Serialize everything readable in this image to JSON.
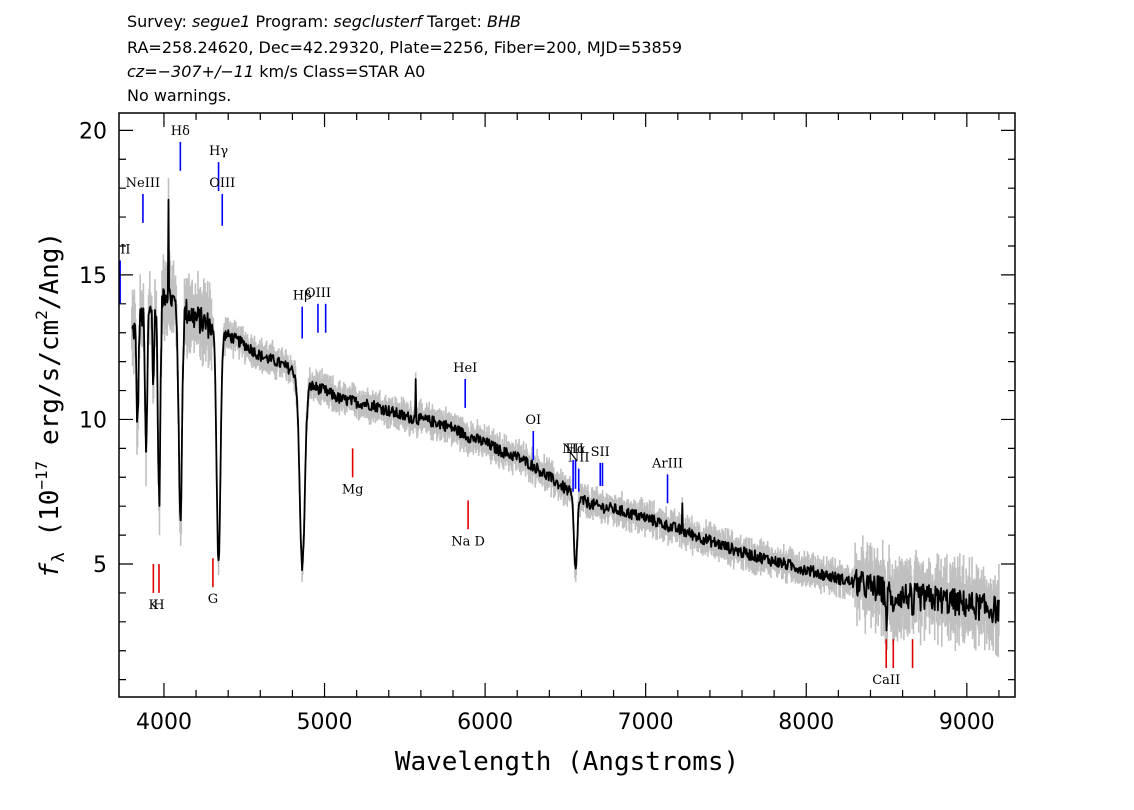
{
  "header": {
    "line1": {
      "survey_label": "Survey: ",
      "survey": "segue1",
      "program_label": " Program: ",
      "program": "segclusterf",
      "target_label": " Target: ",
      "target": "BHB"
    },
    "line2": "RA=258.24620, Dec=42.29320, Plate=2256, Fiber=200, MJD=53859",
    "line3": {
      "cz": "cz=−307+/−11",
      "rest": " km/s Class=STAR A0"
    },
    "line4": "No warnings."
  },
  "chart_data": {
    "type": "line",
    "xlabel": "Wavelength (Angstroms)",
    "ylabel_prefix": "f",
    "ylabel_sub": "λ",
    "ylabel_text": " (10",
    "ylabel_exp": "−17",
    "ylabel_units": " erg/s/cm",
    "ylabel_units_exp": "2",
    "ylabel_end": "/Ang)",
    "xlim": [
      3720,
      9300
    ],
    "ylim": [
      0.4,
      20.6
    ],
    "xticks": [
      4000,
      5000,
      6000,
      7000,
      8000,
      9000
    ],
    "yticks": [
      5,
      10,
      15,
      20
    ],
    "colors": {
      "flux": "#000000",
      "error": "#c0c0c0",
      "emission": "#0000ff",
      "absorption": "#e00000"
    },
    "continuum": [
      [
        3800,
        13.0
      ],
      [
        3900,
        13.9
      ],
      [
        4000,
        14.4
      ],
      [
        4100,
        13.9
      ],
      [
        4200,
        13.5
      ],
      [
        4300,
        13.2
      ],
      [
        4400,
        12.9
      ],
      [
        4500,
        12.6
      ],
      [
        4600,
        12.2
      ],
      [
        4700,
        12.0
      ],
      [
        4800,
        11.7
      ],
      [
        4900,
        11.2
      ],
      [
        5000,
        11.0
      ],
      [
        5100,
        10.7
      ],
      [
        5200,
        10.6
      ],
      [
        5300,
        10.5
      ],
      [
        5400,
        10.3
      ],
      [
        5500,
        10.1
      ],
      [
        5600,
        10.0
      ],
      [
        5700,
        9.9
      ],
      [
        5800,
        9.7
      ],
      [
        5900,
        9.4
      ],
      [
        6000,
        9.2
      ],
      [
        6100,
        8.9
      ],
      [
        6200,
        8.7
      ],
      [
        6300,
        8.4
      ],
      [
        6400,
        8.0
      ],
      [
        6500,
        7.6
      ],
      [
        6600,
        7.2
      ],
      [
        6700,
        7.0
      ],
      [
        6800,
        6.9
      ],
      [
        7000,
        6.6
      ],
      [
        7200,
        6.2
      ],
      [
        7400,
        5.8
      ],
      [
        7600,
        5.4
      ],
      [
        7800,
        5.1
      ],
      [
        8000,
        4.8
      ],
      [
        8200,
        4.5
      ],
      [
        8400,
        4.2
      ],
      [
        8600,
        3.9
      ],
      [
        8800,
        3.8
      ],
      [
        9000,
        3.6
      ],
      [
        9200,
        3.4
      ]
    ],
    "absorption_features": [
      {
        "center": 3835,
        "depth": 3.5,
        "width": 6
      },
      {
        "center": 3889,
        "depth": 5.0,
        "width": 7
      },
      {
        "center": 3934,
        "depth": 3.0,
        "width": 5
      },
      {
        "center": 3970,
        "depth": 7.0,
        "width": 8
      },
      {
        "center": 4102,
        "depth": 7.5,
        "width": 10
      },
      {
        "center": 4340,
        "depth": 8.0,
        "width": 12
      },
      {
        "center": 4861,
        "depth": 6.5,
        "width": 16
      },
      {
        "center": 6563,
        "depth": 2.6,
        "width": 10
      },
      {
        "center": 8500,
        "depth": 1.0,
        "width": 5
      },
      {
        "center": 8542,
        "depth": 0.9,
        "width": 5
      },
      {
        "center": 8662,
        "depth": 0.8,
        "width": 5
      }
    ],
    "spikes": [
      {
        "x": 4030,
        "y": 17.6
      },
      {
        "x": 5570,
        "y": 11.4
      },
      {
        "x": 7230,
        "y": 7.1
      }
    ],
    "emission_lines": [
      {
        "label": "OII",
        "wavelength": 3727,
        "y_top": 15.5,
        "y_bottom": 14.0
      },
      {
        "label": "NeIII",
        "wavelength": 3869,
        "y_top": 17.8,
        "y_bottom": 16.8
      },
      {
        "label": "Hδ",
        "wavelength": 4102,
        "y_top": 19.6,
        "y_bottom": 18.6
      },
      {
        "label": "Hγ",
        "wavelength": 4340,
        "y_top": 18.9,
        "y_bottom": 17.9
      },
      {
        "label": "OIII",
        "wavelength": 4363,
        "y_top": 17.8,
        "y_bottom": 16.7
      },
      {
        "label": "Hβ",
        "wavelength": 4861,
        "y_top": 13.9,
        "y_bottom": 12.8
      },
      {
        "label": "OIII",
        "wavelength": 4959,
        "y_top": 14.0,
        "y_bottom": 13.0
      },
      {
        "label": "",
        "wavelength": 5007,
        "y_top": 14.0,
        "y_bottom": 13.0
      },
      {
        "label": "HeI",
        "wavelength": 5876,
        "y_top": 11.4,
        "y_bottom": 10.4
      },
      {
        "label": "OI",
        "wavelength": 6300,
        "y_top": 9.6,
        "y_bottom": 8.6
      },
      {
        "label": "NII",
        "wavelength": 6548,
        "y_top": 8.6,
        "y_bottom": 7.5
      },
      {
        "label": "Hα",
        "wavelength": 6563,
        "y_top": 8.6,
        "y_bottom": 7.6
      },
      {
        "label": "NII",
        "wavelength": 6583,
        "y_top": 8.3,
        "y_bottom": 7.5
      },
      {
        "label": "SII",
        "wavelength": 6717,
        "y_top": 8.5,
        "y_bottom": 7.7
      },
      {
        "label": "",
        "wavelength": 6731,
        "y_top": 8.5,
        "y_bottom": 7.7
      },
      {
        "label": "ArIII",
        "wavelength": 7136,
        "y_top": 8.1,
        "y_bottom": 7.1
      }
    ],
    "absorption_lines": [
      {
        "label": "K",
        "wavelength": 3934,
        "y_top": 5.0,
        "y_bottom": 4.0
      },
      {
        "label": "H",
        "wavelength": 3969,
        "y_top": 5.0,
        "y_bottom": 4.0
      },
      {
        "label": "G",
        "wavelength": 4305,
        "y_top": 5.2,
        "y_bottom": 4.2
      },
      {
        "label": "Mg",
        "wavelength": 5175,
        "y_top": 9.0,
        "y_bottom": 8.0
      },
      {
        "label": "Na D",
        "wavelength": 5894,
        "y_top": 7.2,
        "y_bottom": 6.2
      },
      {
        "label": "CaII",
        "wavelength": 8498,
        "y_top": 2.4,
        "y_bottom": 1.4
      },
      {
        "label": "",
        "wavelength": 8542,
        "y_top": 2.4,
        "y_bottom": 1.4
      },
      {
        "label": "",
        "wavelength": 8662,
        "y_top": 2.4,
        "y_bottom": 1.4
      }
    ]
  }
}
